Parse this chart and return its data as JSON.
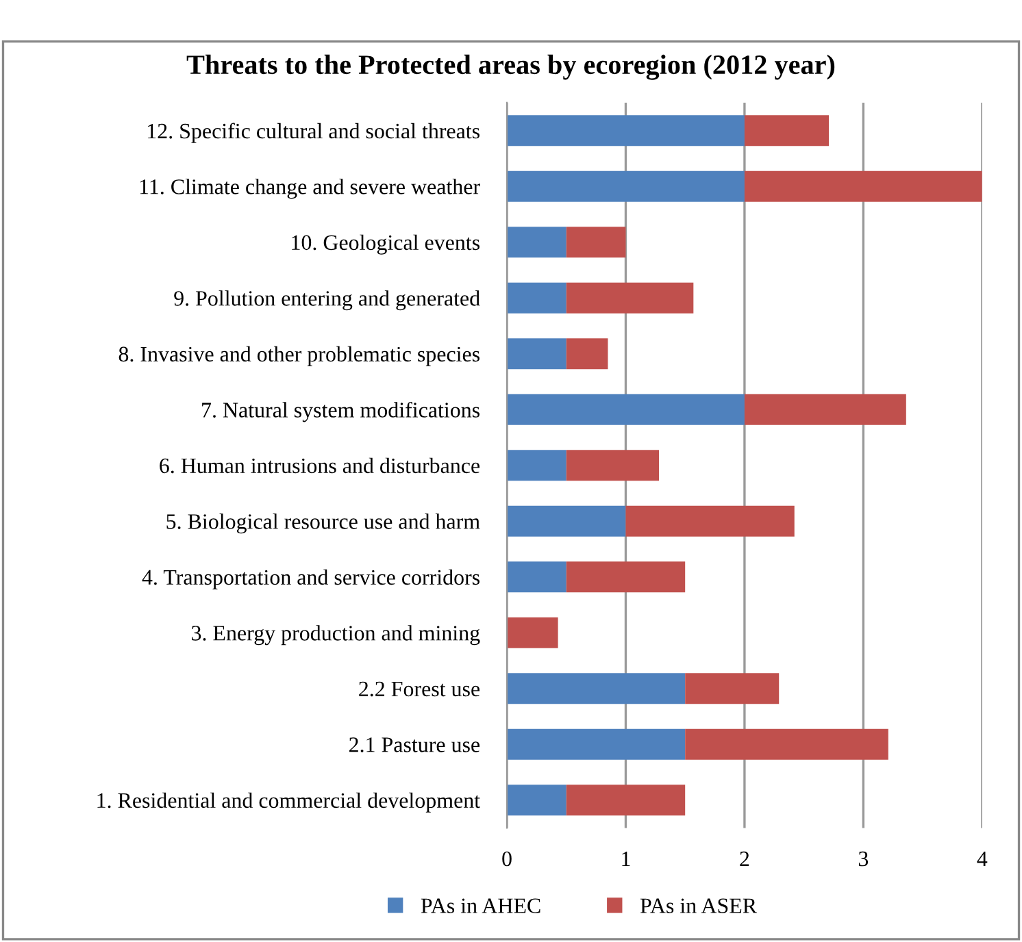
{
  "chart_data": {
    "type": "bar",
    "orientation": "horizontal",
    "stacked": true,
    "title": "Threats to the Protected areas by ecoregion (2012 year)",
    "categories": [
      "12. Specific cultural and social threats",
      "11. Climate change and severe weather",
      "10. Geological events",
      "9. Pollution entering and generated",
      "8. Invasive and other problematic species",
      "7. Natural system modifications",
      "6. Human intrusions and disturbance",
      "5. Biological resource use and harm",
      "4. Transportation and service corridors",
      "3. Energy production and mining",
      "2.2 Forest use",
      "2.1 Pasture use",
      "1. Residential and commercial development"
    ],
    "series": [
      {
        "name": "PAs in AHEC",
        "color": "#4f81bd",
        "values": [
          2,
          2,
          0.5,
          0.5,
          0.5,
          2,
          0.5,
          1,
          0.5,
          0,
          1.5,
          1.5,
          0.5
        ]
      },
      {
        "name": "PAs in ASER",
        "color": "#c0504d",
        "values": [
          0.71,
          2.0,
          0.5,
          1.07,
          0.35,
          1.36,
          0.78,
          1.42,
          1.0,
          0.43,
          0.79,
          1.71,
          1.0
        ]
      }
    ],
    "xlim": [
      0,
      4
    ],
    "xticks": [
      0,
      1,
      2,
      3,
      4
    ],
    "grid": "x",
    "legend": "bottom"
  }
}
